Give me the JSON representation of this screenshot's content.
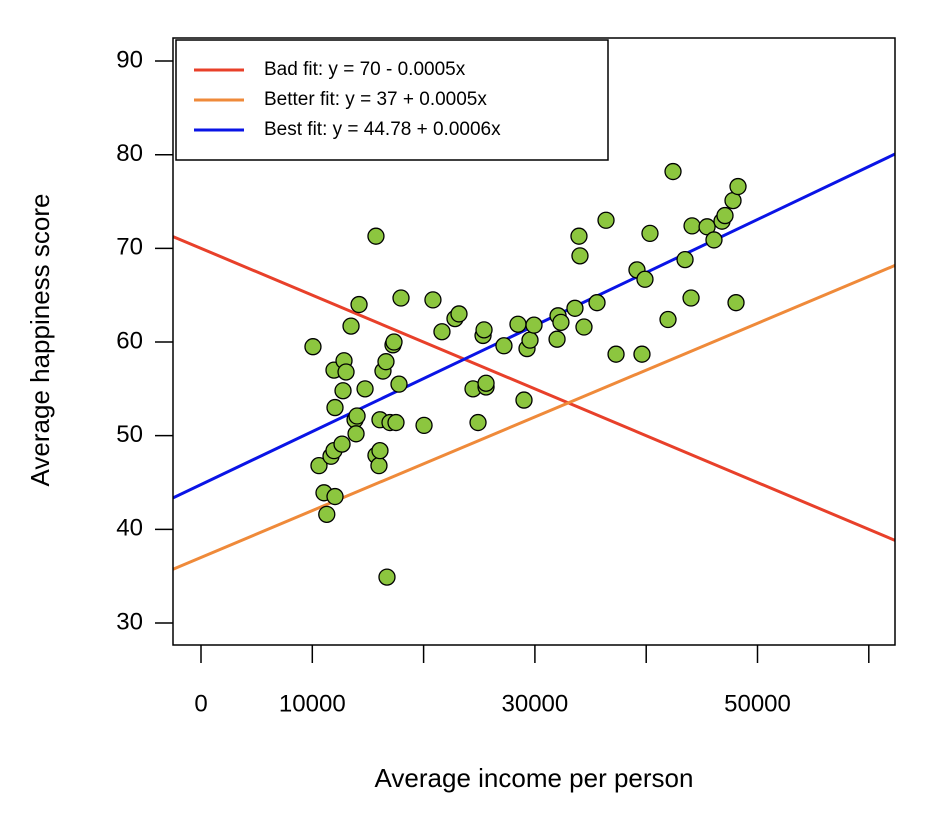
{
  "chart_data": {
    "type": "scatter",
    "xlabel": "Average income per person",
    "ylabel": "Average happiness score",
    "xlim": [
      -2516,
      62354
    ],
    "ylim": [
      27.65,
      92.46
    ],
    "xticks": [
      0,
      10000,
      30000,
      50000
    ],
    "xminor_ticks": [
      20000,
      40000,
      60000
    ],
    "yticks": [
      30,
      40,
      50,
      60,
      70,
      80,
      90
    ],
    "legend": "topleft",
    "point_color": "#8cc63f",
    "x": [
      10060,
      10600,
      11050,
      11300,
      11680,
      11950,
      11950,
      12040,
      12040,
      12670,
      12760,
      12850,
      13030,
      13480,
      13840,
      13930,
      14020,
      14200,
      14740,
      15720,
      15720,
      15990,
      16080,
      16080,
      16350,
      16620,
      16710,
      16980,
      17250,
      17340,
      17520,
      17790,
      17970,
      20040,
      20840,
      21650,
      22820,
      23180,
      24440,
      24890,
      25340,
      25430,
      25610,
      25610,
      27220,
      28480,
      29020,
      29290,
      29560,
      29920,
      31990,
      32080,
      32340,
      33600,
      33960,
      34050,
      34410,
      35580,
      36390,
      37290,
      39170,
      39620,
      39890,
      40340,
      41960,
      42410,
      43490,
      44030,
      44120,
      45470,
      46090,
      46810,
      47080,
      47800,
      48070,
      48250
    ],
    "values": [
      59.5,
      46.8,
      43.9,
      41.6,
      47.8,
      48.4,
      57.0,
      53.0,
      43.5,
      49.1,
      54.8,
      58.0,
      56.8,
      61.7,
      51.7,
      50.2,
      52.1,
      64.0,
      55.0,
      71.3,
      47.9,
      46.8,
      48.4,
      51.7,
      56.9,
      57.9,
      34.9,
      51.4,
      59.7,
      60.0,
      51.4,
      55.5,
      64.7,
      51.1,
      64.5,
      61.1,
      62.5,
      63.0,
      55.0,
      51.4,
      60.7,
      61.3,
      55.2,
      55.6,
      59.6,
      61.9,
      53.8,
      59.3,
      60.2,
      61.8,
      60.3,
      62.8,
      62.1,
      63.6,
      71.3,
      69.2,
      61.6,
      64.2,
      73.0,
      58.7,
      67.7,
      58.7,
      66.7,
      71.6,
      62.4,
      78.2,
      68.8,
      64.7,
      72.4,
      72.3,
      70.9,
      72.9,
      73.5,
      75.1,
      64.2,
      76.6
    ],
    "lines": [
      {
        "name": "Bad fit: y = 70 - 0.0005x",
        "color": "#e8402a",
        "intercept": 70,
        "slope": -0.0005
      },
      {
        "name": "Better fit: y = 37 + 0.0005x",
        "color": "#ef8a3a",
        "intercept": 37,
        "slope": 0.0005
      },
      {
        "name": "Best fit: y = 44.78 + 0.0006x",
        "color": "#0a14e6",
        "intercept": 44.78,
        "slope": 0.000566
      }
    ]
  }
}
